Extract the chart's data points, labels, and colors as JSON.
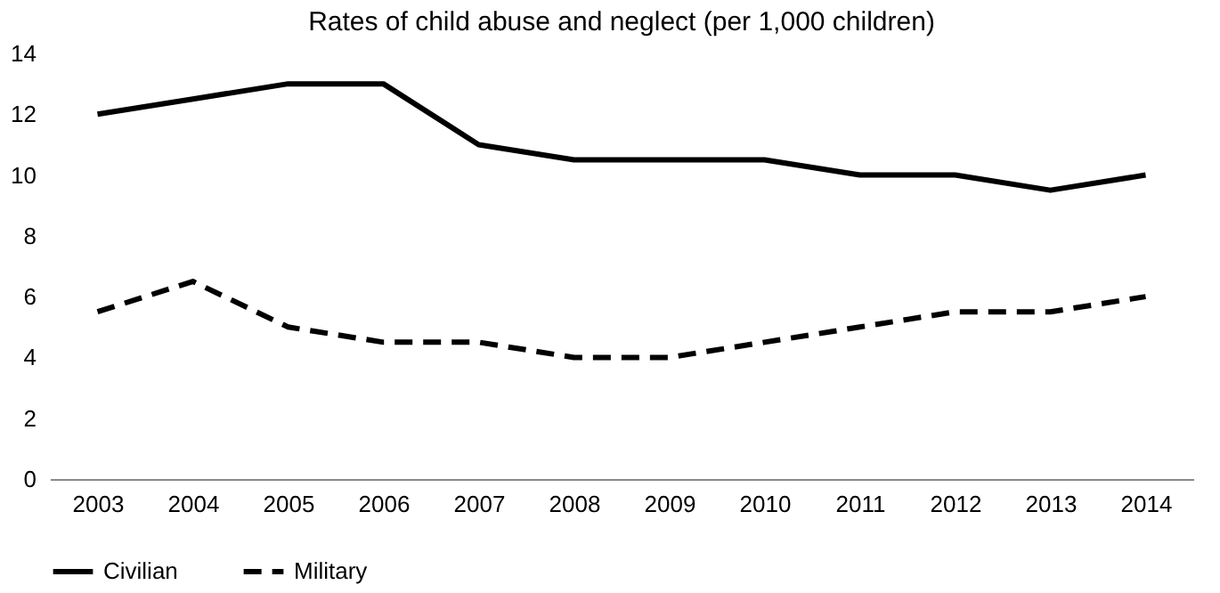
{
  "chart_data": {
    "type": "line",
    "title": "Rates of child abuse and neglect (per 1,000 children)",
    "categories": [
      "2003",
      "2004",
      "2005",
      "2006",
      "2007",
      "2008",
      "2009",
      "2010",
      "2011",
      "2012",
      "2013",
      "2014"
    ],
    "series": [
      {
        "name": "Civilian",
        "color": "#000000",
        "line_style": "solid",
        "values": [
          12,
          12.5,
          13,
          13,
          11,
          10.5,
          10.5,
          10.5,
          10,
          10,
          9.5,
          10
        ]
      },
      {
        "name": "Military",
        "color": "#000000",
        "line_style": "dashed",
        "values": [
          5.5,
          6.5,
          5,
          4.5,
          4.5,
          4,
          4,
          4.5,
          5,
          5.5,
          5.5,
          6
        ]
      }
    ],
    "ylim": [
      0,
      14
    ],
    "yticks": [
      0,
      2,
      4,
      6,
      8,
      10,
      12,
      14
    ],
    "grid": false,
    "legend": "bottom",
    "marker": "none"
  }
}
